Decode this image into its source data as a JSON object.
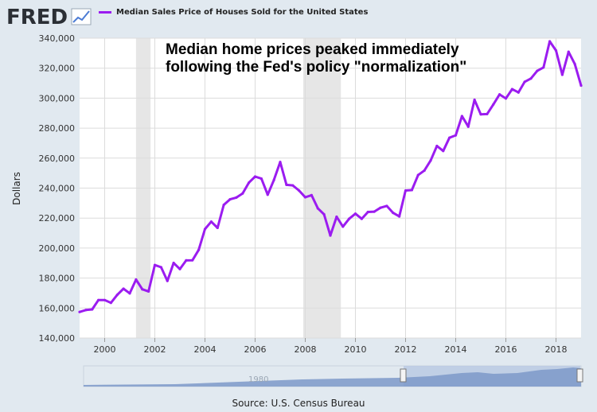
{
  "header": {
    "logo_text": "FRED",
    "legend_label": "Median Sales Price of Houses Sold for the United States"
  },
  "footer": {
    "source": "Source: U.S. Census Bureau"
  },
  "navigator": {
    "label": "1980"
  },
  "colors": {
    "series": "#9b1cf0",
    "recession": "#e6e6e6",
    "grid": "#dcdcdc",
    "plot_bg": "#ffffff",
    "page_bg": "#e1e9f0",
    "logo": "#2b2f35",
    "navigator_fill": "#7c99c9"
  },
  "chart_data": {
    "type": "line",
    "title": "Median Sales Price of Houses Sold for the United States",
    "ylabel": "Dollars",
    "xlabel": "",
    "x_ticks": [
      2000,
      2002,
      2004,
      2006,
      2008,
      2010,
      2012,
      2014,
      2016,
      2018
    ],
    "y_ticks": [
      140000,
      160000,
      180000,
      200000,
      220000,
      240000,
      260000,
      280000,
      300000,
      320000,
      340000
    ],
    "y_tick_labels": [
      "140,000",
      "160,000",
      "180,000",
      "200,000",
      "220,000",
      "240,000",
      "260,000",
      "280,000",
      "300,000",
      "320,000",
      "340,000"
    ],
    "xlim": [
      1999.0,
      2019.0
    ],
    "ylim": [
      140000,
      340000
    ],
    "grid": true,
    "legend_position": "top",
    "annotations": [
      "Median home prices peaked immediately",
      "following the Fed's policy \"normalization\""
    ],
    "recessions": [
      [
        2001.25,
        2001.83
      ],
      [
        2007.92,
        2009.42
      ]
    ],
    "series": [
      {
        "name": "Median Sales Price of Houses Sold for the United States",
        "x": [
          1999.0,
          1999.25,
          1999.5,
          1999.75,
          2000.0,
          2000.25,
          2000.5,
          2000.75,
          2001.0,
          2001.25,
          2001.5,
          2001.75,
          2002.0,
          2002.25,
          2002.5,
          2002.75,
          2003.0,
          2003.25,
          2003.5,
          2003.75,
          2004.0,
          2004.25,
          2004.5,
          2004.75,
          2005.0,
          2005.25,
          2005.5,
          2005.75,
          2006.0,
          2006.25,
          2006.5,
          2006.75,
          2007.0,
          2007.25,
          2007.5,
          2007.75,
          2008.0,
          2008.25,
          2008.5,
          2008.75,
          2009.0,
          2009.25,
          2009.5,
          2009.75,
          2010.0,
          2010.25,
          2010.5,
          2010.75,
          2011.0,
          2011.25,
          2011.5,
          2011.75,
          2012.0,
          2012.25,
          2012.5,
          2012.75,
          2013.0,
          2013.25,
          2013.5,
          2013.75,
          2014.0,
          2014.25,
          2014.5,
          2014.75,
          2015.0,
          2015.25,
          2015.5,
          2015.75,
          2016.0,
          2016.25,
          2016.5,
          2016.75,
          2017.0,
          2017.25,
          2017.5,
          2017.75,
          2018.0,
          2018.25,
          2018.5,
          2018.75,
          2019.0
        ],
        "values": [
          157400,
          158700,
          159100,
          165300,
          165300,
          163500,
          168800,
          172900,
          169800,
          179000,
          172500,
          171100,
          188700,
          187200,
          178100,
          190100,
          186000,
          191800,
          191900,
          198800,
          212700,
          217600,
          213500,
          228800,
          232500,
          233700,
          236400,
          243600,
          247700,
          246300,
          235600,
          245400,
          257400,
          242200,
          241800,
          238400,
          233900,
          235300,
          226500,
          222500,
          208400,
          220900,
          214300,
          219500,
          222900,
          219500,
          224100,
          224300,
          226900,
          228100,
          223500,
          221100,
          238400,
          238700,
          248700,
          251700,
          258400,
          268100,
          264800,
          273600,
          275200,
          288000,
          281000,
          298900,
          289200,
          289400,
          295800,
          302500,
          299800,
          306000,
          303800,
          310900,
          313100,
          318200,
          320500,
          337900,
          331800,
          315600,
          330900,
          322800,
          308400
        ]
      }
    ]
  }
}
